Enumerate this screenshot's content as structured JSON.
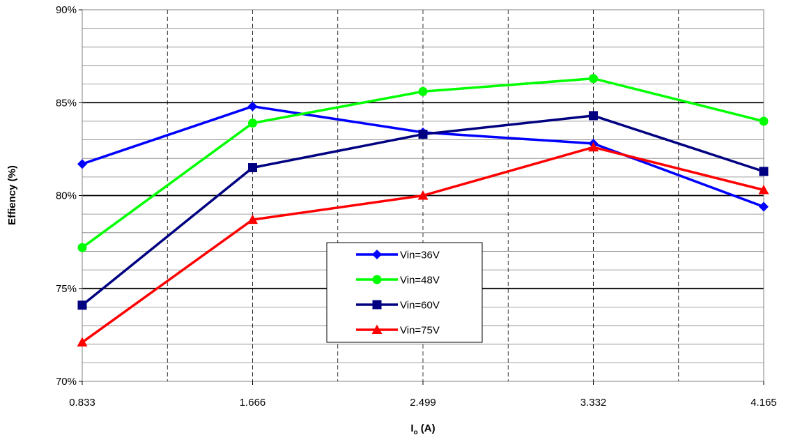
{
  "chart_data": {
    "type": "line",
    "xlabel": "I",
    "xlabel_sub": "o",
    "xlabel_unit": " (A)",
    "ylabel": "Effiency (%)",
    "categories": [
      "0.833",
      "1.666",
      "2.499",
      "3.332",
      "4.165"
    ],
    "y_ticks": [
      "70%",
      "75%",
      "80%",
      "85%",
      "90%"
    ],
    "ylim": [
      70,
      90
    ],
    "grid": true,
    "legend_position": "center",
    "series": [
      {
        "name": "Vin=36V",
        "color": "#0000ff",
        "marker": "diamond",
        "values": [
          81.7,
          84.8,
          83.4,
          82.8,
          79.4
        ]
      },
      {
        "name": "Vin=48V",
        "color": "#00ff00",
        "marker": "circle",
        "values": [
          77.2,
          83.9,
          85.6,
          86.3,
          84.0
        ]
      },
      {
        "name": "Vin=60V",
        "color": "#000080",
        "marker": "square",
        "values": [
          74.1,
          81.5,
          83.3,
          84.3,
          81.3
        ]
      },
      {
        "name": "Vin=75V",
        "color": "#ff0000",
        "marker": "triangle",
        "values": [
          72.1,
          78.7,
          80.0,
          82.6,
          80.3
        ]
      }
    ]
  }
}
